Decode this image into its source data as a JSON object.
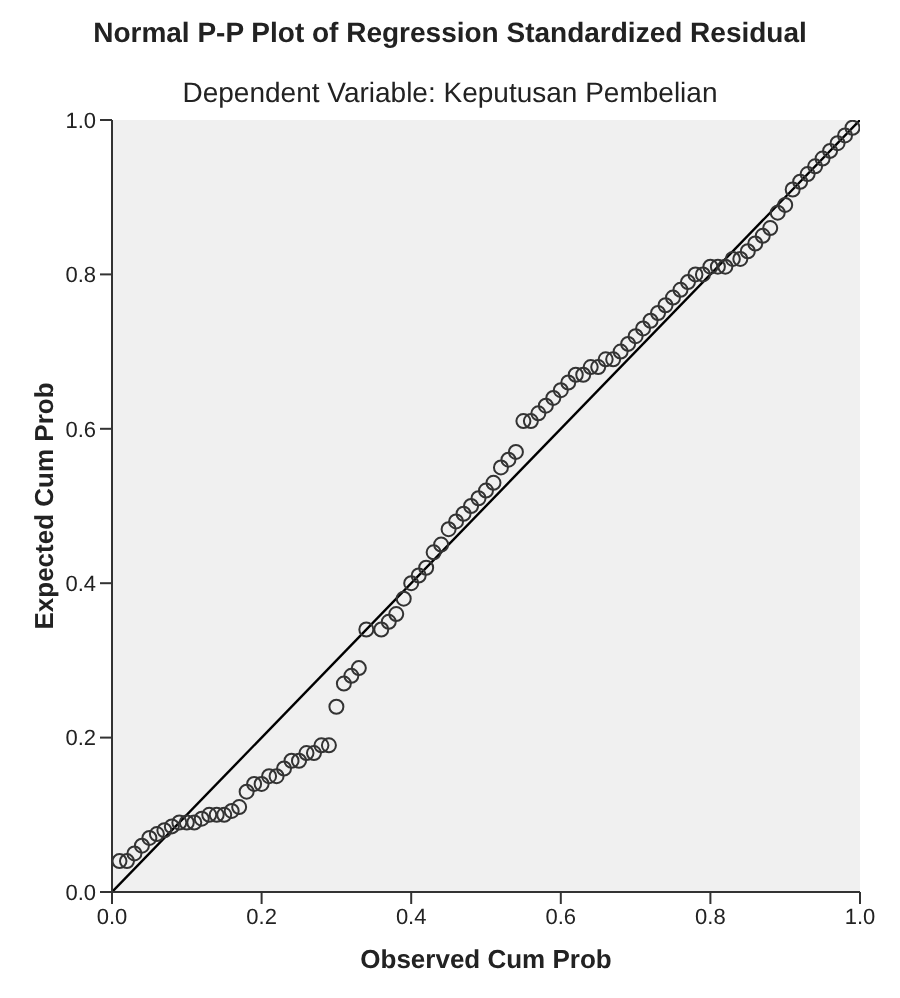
{
  "chart_data": {
    "type": "scatter",
    "title": "Normal P-P Plot of Regression Standardized Residual",
    "subtitle": "Dependent Variable: Keputusan Pembelian",
    "xlabel": "Observed Cum Prob",
    "ylabel": "Expected Cum Prob",
    "xlim": [
      0,
      1
    ],
    "ylim": [
      0,
      1
    ],
    "xticks": [
      {
        "value": 0,
        "label": "0.0"
      },
      {
        "value": 0.2,
        "label": "0.2"
      },
      {
        "value": 0.4,
        "label": "0.4"
      },
      {
        "value": 0.6,
        "label": "0.6"
      },
      {
        "value": 0.8,
        "label": "0.8"
      },
      {
        "value": 1,
        "label": "1.0"
      }
    ],
    "yticks": [
      {
        "value": 0,
        "label": "0.0"
      },
      {
        "value": 0.2,
        "label": "0.2"
      },
      {
        "value": 0.4,
        "label": "0.4"
      },
      {
        "value": 0.6,
        "label": "0.6"
      },
      {
        "value": 0.8,
        "label": "0.8"
      },
      {
        "value": 1,
        "label": "1.0"
      }
    ],
    "grid": false,
    "marker": "circle",
    "series": [
      {
        "color": "#333333",
        "x": [
          0.01,
          0.02,
          0.03,
          0.04,
          0.05,
          0.06,
          0.07,
          0.08,
          0.09,
          0.1,
          0.11,
          0.12,
          0.13,
          0.14,
          0.15,
          0.16,
          0.17,
          0.18,
          0.19,
          0.2,
          0.21,
          0.22,
          0.23,
          0.24,
          0.25,
          0.26,
          0.27,
          0.28,
          0.29,
          0.3,
          0.31,
          0.32,
          0.33,
          0.34,
          0.36,
          0.37,
          0.38,
          0.39,
          0.4,
          0.41,
          0.42,
          0.43,
          0.44,
          0.45,
          0.46,
          0.47,
          0.48,
          0.49,
          0.5,
          0.51,
          0.52,
          0.53,
          0.54,
          0.55,
          0.56,
          0.57,
          0.58,
          0.59,
          0.6,
          0.61,
          0.62,
          0.63,
          0.64,
          0.65,
          0.66,
          0.67,
          0.68,
          0.69,
          0.7,
          0.71,
          0.72,
          0.73,
          0.74,
          0.75,
          0.76,
          0.77,
          0.78,
          0.79,
          0.8,
          0.81,
          0.82,
          0.83,
          0.84,
          0.85,
          0.86,
          0.87,
          0.88,
          0.89,
          0.9,
          0.91,
          0.92,
          0.93,
          0.94,
          0.95,
          0.96,
          0.97,
          0.98,
          0.99
        ],
        "values": [
          0.04,
          0.04,
          0.05,
          0.06,
          0.07,
          0.075,
          0.08,
          0.085,
          0.09,
          0.09,
          0.09,
          0.095,
          0.1,
          0.1,
          0.1,
          0.105,
          0.11,
          0.13,
          0.14,
          0.14,
          0.15,
          0.15,
          0.16,
          0.17,
          0.17,
          0.18,
          0.18,
          0.19,
          0.19,
          0.24,
          0.27,
          0.28,
          0.29,
          0.34,
          0.34,
          0.35,
          0.36,
          0.38,
          0.4,
          0.41,
          0.42,
          0.44,
          0.45,
          0.47,
          0.48,
          0.49,
          0.5,
          0.51,
          0.52,
          0.53,
          0.55,
          0.56,
          0.57,
          0.61,
          0.61,
          0.62,
          0.63,
          0.64,
          0.65,
          0.66,
          0.67,
          0.67,
          0.68,
          0.68,
          0.69,
          0.69,
          0.7,
          0.71,
          0.72,
          0.73,
          0.74,
          0.75,
          0.76,
          0.77,
          0.78,
          0.79,
          0.8,
          0.8,
          0.81,
          0.81,
          0.81,
          0.82,
          0.82,
          0.83,
          0.84,
          0.85,
          0.86,
          0.88,
          0.89,
          0.91,
          0.92,
          0.93,
          0.94,
          0.95,
          0.96,
          0.97,
          0.98,
          0.99
        ]
      },
      {
        "type": "line",
        "color": "#000000",
        "marker": "none",
        "x": [
          0,
          1
        ],
        "values": [
          0,
          1
        ]
      }
    ]
  }
}
